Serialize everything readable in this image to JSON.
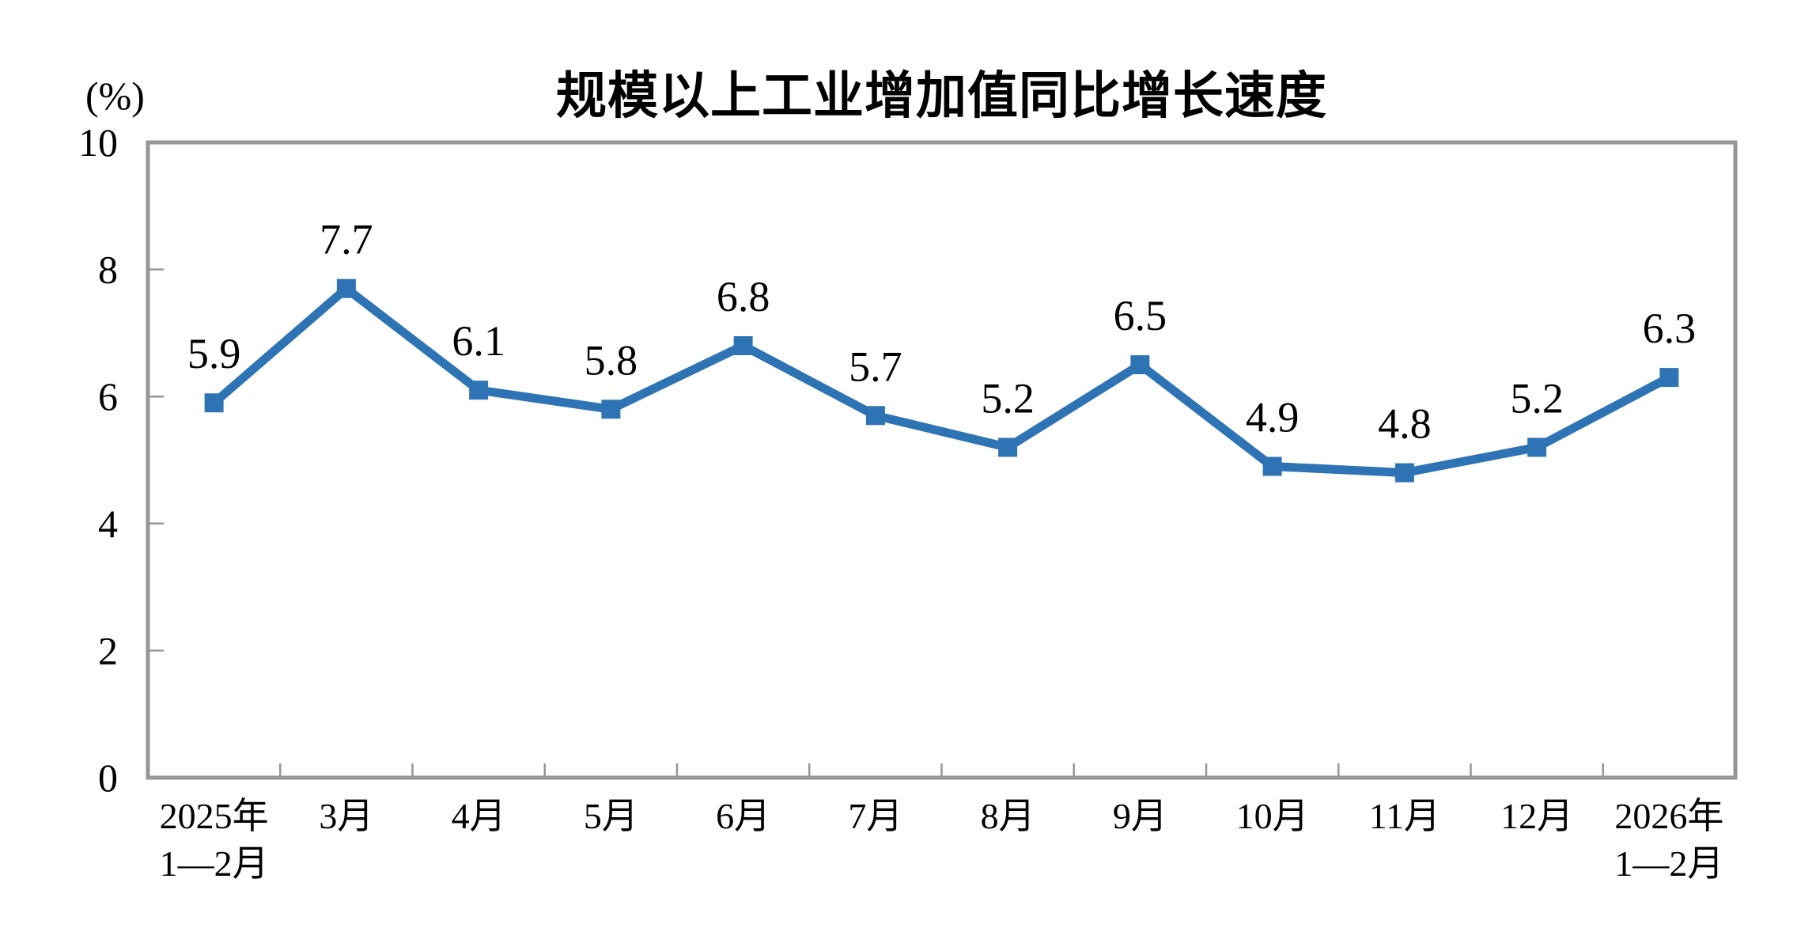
{
  "chart_data": {
    "type": "line",
    "title": "规模以上工业增加值同比增长速度",
    "ylabel": "(%)",
    "xlabel": "",
    "categories": [
      "2025年\n1—2月",
      "3月",
      "4月",
      "5月",
      "6月",
      "7月",
      "8月",
      "9月",
      "10月",
      "11月",
      "12月",
      "2026年\n1—2月"
    ],
    "values": [
      5.9,
      7.7,
      6.1,
      5.8,
      6.8,
      5.7,
      5.2,
      6.5,
      4.9,
      4.8,
      5.2,
      6.3
    ],
    "ylim": [
      0,
      10
    ],
    "yticks": [
      0,
      2,
      4,
      6,
      8,
      10
    ],
    "grid": false,
    "legend_position": "none",
    "data_labels": true,
    "marker": "square",
    "line_color": "#2E74B5",
    "axis_color": "#969696",
    "text_color": "#000000"
  }
}
